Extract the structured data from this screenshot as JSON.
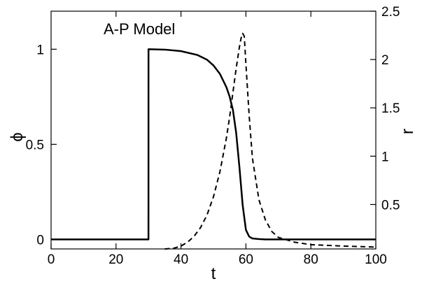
{
  "chart_data": {
    "type": "line",
    "title": "A-P Model",
    "xlabel": "t",
    "ylabel_left": "ϕ",
    "ylabel_right": "r",
    "xlim": [
      0,
      100
    ],
    "ylim_left": [
      -0.05,
      1.2
    ],
    "ylim_right": [
      0.0405,
      2.5
    ],
    "x_ticks": [
      0,
      20,
      40,
      60,
      80,
      100
    ],
    "y_left_ticks": [
      0,
      0.5,
      1
    ],
    "y_right_ticks": [
      0.5,
      1,
      1.5,
      2,
      2.5
    ],
    "grid": false,
    "series": [
      {
        "axis": "left",
        "style": "solid",
        "x": [
          0,
          29.99,
          30,
          35,
          40,
          45,
          48,
          50,
          52,
          54,
          55,
          56,
          57,
          58,
          59,
          60,
          61,
          62,
          64,
          66,
          70,
          80,
          100
        ],
        "y": [
          0,
          0,
          1.0,
          0.998,
          0.99,
          0.97,
          0.945,
          0.915,
          0.87,
          0.8,
          0.75,
          0.68,
          0.56,
          0.38,
          0.18,
          0.05,
          0.015,
          0.005,
          0.002,
          0,
          0,
          0,
          0
        ]
      },
      {
        "axis": "right",
        "style": "dashed",
        "x": [
          35,
          38,
          40,
          42,
          44,
          46,
          48,
          50,
          52,
          54,
          55,
          56,
          57,
          58,
          58.5,
          59,
          59.5,
          60,
          61,
          62,
          64,
          66,
          68,
          70,
          75,
          80,
          90,
          100
        ],
        "y": [
          0.04,
          0.05,
          0.07,
          0.11,
          0.17,
          0.26,
          0.39,
          0.58,
          0.84,
          1.19,
          1.41,
          1.66,
          1.91,
          2.13,
          2.22,
          2.27,
          2.24,
          1.95,
          1.42,
          0.98,
          0.55,
          0.34,
          0.22,
          0.16,
          0.11,
          0.085,
          0.07,
          0.06
        ]
      }
    ]
  },
  "colors": {
    "line": "#000000",
    "background": "#ffffff"
  }
}
